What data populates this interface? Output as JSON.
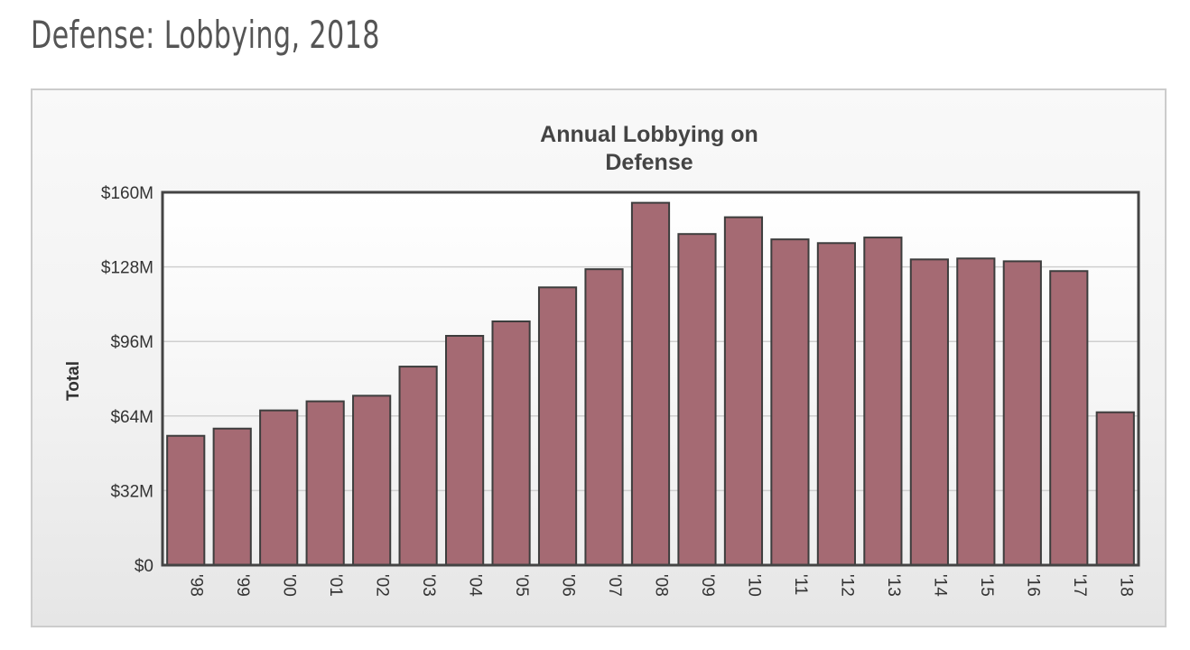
{
  "page": {
    "title": "Defense: Lobbying, 2018"
  },
  "chart_data": {
    "type": "bar",
    "title": "Annual Lobbying on Defense",
    "title_lines": [
      "Annual Lobbying on",
      "Defense"
    ],
    "xlabel": "",
    "ylabel": "Total",
    "categories": [
      "'98",
      "'99",
      "'00",
      "'01",
      "'02",
      "'03",
      "'04",
      "'05",
      "'06",
      "'07",
      "'08",
      "'09",
      "'10",
      "'11",
      "'12",
      "'13",
      "'14",
      "'15",
      "'16",
      "'17",
      "'18"
    ],
    "values": [
      55.5,
      58.6,
      66.4,
      70.3,
      72.7,
      85.2,
      98.4,
      104.6,
      119.2,
      127.0,
      155.5,
      142.1,
      149.3,
      139.8,
      138.2,
      140.6,
      131.2,
      131.6,
      130.4,
      126.2,
      65.6
    ],
    "unit": "millions USD",
    "ylim": [
      0,
      160
    ],
    "yticks": [
      0,
      32,
      64,
      96,
      128,
      160
    ],
    "ytick_labels": [
      "$0",
      "$32M",
      "$64M",
      "$96M",
      "$128M",
      "$160M"
    ],
    "grid": true,
    "legend": "none",
    "colors": {
      "bar_fill": "#a56a73",
      "bar_stroke": "#3d3d3d",
      "plot_border": "#444444",
      "gridline": "#cfcfcf",
      "plot_bg_top": "#ffffff",
      "plot_bg_bottom": "#efefef"
    }
  }
}
